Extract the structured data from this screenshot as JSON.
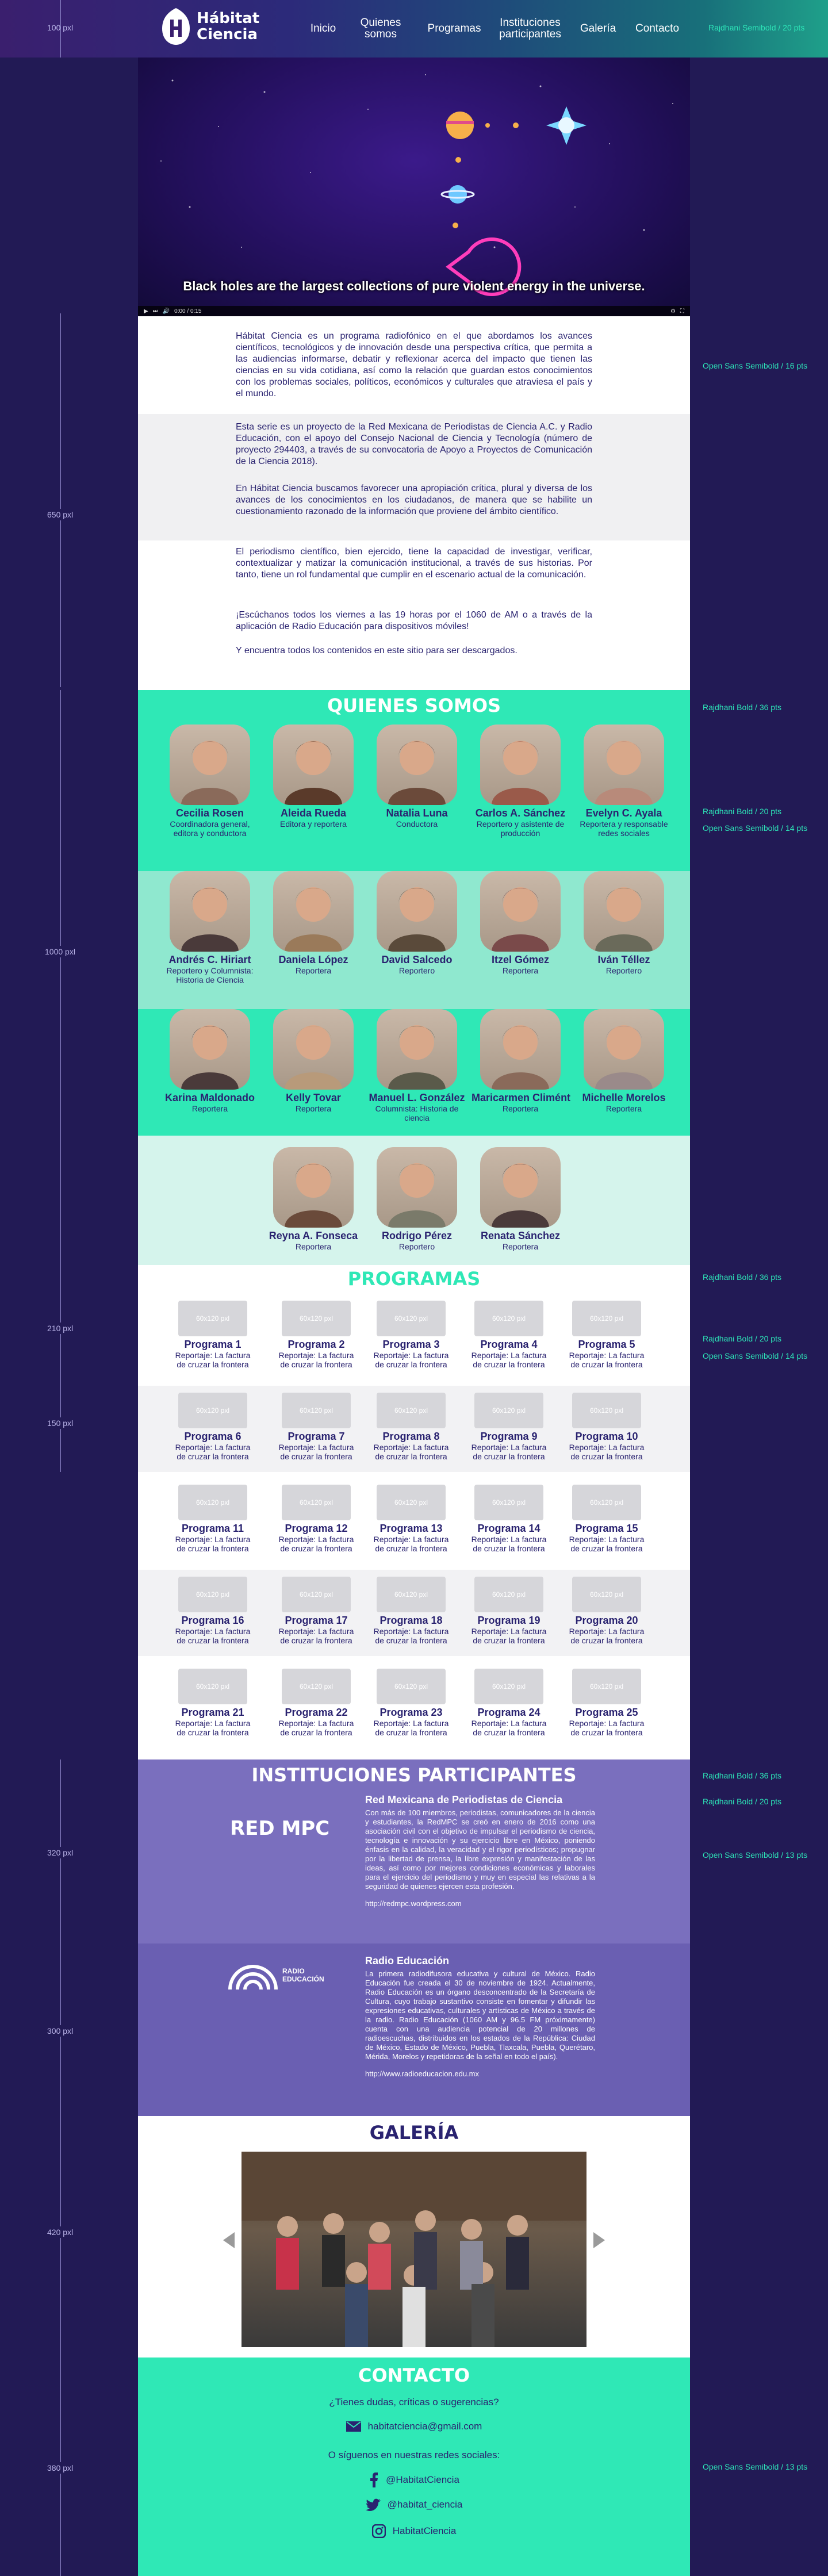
{
  "header": {
    "logo_line1": "Hábitat",
    "logo_line2": "Ciencia",
    "nav": [
      {
        "label": "Inicio"
      },
      {
        "label": "Quienes\nsomos"
      },
      {
        "label": "Programas"
      },
      {
        "label": "Instituciones\nparticipantes"
      },
      {
        "label": "Galería"
      },
      {
        "label": "Contacto"
      }
    ],
    "font_note": "Rajdhani Semibold / 20 pts"
  },
  "measures": [
    "100 pxl",
    "650 pxl",
    "1000 pxl",
    "210 pxl",
    "150 pxl",
    "320 pxl",
    "300 pxl",
    "420 pxl",
    "380 pxl"
  ],
  "side_notes": {
    "intro": "Open Sans Semibold / 16 pts",
    "somos_title": "Rajdhani Bold / 36 pts",
    "somos_name": "Rajdhani Bold / 20 pts",
    "somos_role": "Open Sans Semibold / 14 pts",
    "prog_title": "Rajdhani Bold / 36 pts",
    "prog_name": "Rajdhani Bold / 20 pts",
    "prog_desc": "Open Sans Semibold / 14 pts",
    "inst_title": "Rajdhani Bold / 36 pts",
    "inst_name": "Rajdhani Bold / 20 pts",
    "inst_desc": "Open Sans Semibold / 13 pts",
    "contact": "Open Sans Semibold / 13 pts"
  },
  "video": {
    "caption": "Black holes are the largest collections of pure violent energy in the universe.",
    "time": "0:00 / 0:15"
  },
  "intro": {
    "p1": "Hábitat Ciencia es un programa radiofónico en el que abordamos los avances científicos, tecnológicos y de innovación desde una perspectiva crítica, que permita a las audiencias informarse, debatir y reflexionar acerca del impacto que tienen las ciencias en su vida cotidiana, así como la relación que guardan estos conocimientos con los problemas sociales, políticos, económicos y culturales que atraviesa el país y el mundo.",
    "p2": "Esta serie es un proyecto de la Red Mexicana de Periodistas de Ciencia A.C. y Radio Educación, con el apoyo del Consejo Nacional de Ciencia y Tecnología (número de proyecto 294403, a través de su convocatoria de Apoyo a Proyectos de Comunicación de la Ciencia 2018).",
    "p3": "En Hábitat Ciencia buscamos favorecer una apropiación crítica, plural y diversa de los avances de los conocimientos en los ciudadanos, de manera que se habilite un cuestionamiento razonado de la información que proviene del ámbito científico.",
    "p4": "El periodismo científico, bien ejercido, tiene la capacidad de investigar, verificar, contextualizar y matizar la comunicación institucional, a través de sus historias. Por tanto, tiene un rol fundamental que cumplir en el escenario actual de la comunicación.",
    "p5": "¡Escúchanos todos los viernes a las 19 horas por el 1060 de AM o a través de la aplicación de Radio Educación para dispositivos móviles!",
    "p6": "Y encuentra todos los contenidos en este sitio para ser descargados."
  },
  "somos": {
    "title": "QUIENES SOMOS",
    "people": [
      {
        "name": "Cecilia Rosen",
        "role": "Coordinadora general, editora y conductora",
        "color": "#8a6a5a"
      },
      {
        "name": "Aleida Rueda",
        "role": "Editora y reportera",
        "color": "#5a3a2a"
      },
      {
        "name": "Natalia Luna",
        "role": "Conductora",
        "color": "#6b4a3a"
      },
      {
        "name": "Carlos A. Sánchez",
        "role": "Reportero y asistente de producción",
        "color": "#9a5a4a"
      },
      {
        "name": "Evelyn C. Ayala",
        "role": "Reportera y responsable redes sociales",
        "color": "#b88a7a"
      },
      {
        "name": "Andrés C. Hiriart",
        "role": "Reportero y Columnista: Historia de Ciencia",
        "color": "#4a3a3a"
      },
      {
        "name": "Daniela López",
        "role": "Reportera",
        "color": "#9a7a5a"
      },
      {
        "name": "David Salcedo",
        "role": "Reportero",
        "color": "#5a4a3a"
      },
      {
        "name": "Itzel Gómez",
        "role": "Reportera",
        "color": "#7a4a4a"
      },
      {
        "name": "Iván Téllez",
        "role": "Reportero",
        "color": "#6a6a5a"
      },
      {
        "name": "Karina Maldonado",
        "role": "Reportera",
        "color": "#4a3a3a"
      },
      {
        "name": "Kelly Tovar",
        "role": "Reportera",
        "color": "#b89a7a"
      },
      {
        "name": "Manuel L. González",
        "role": "Columnista: Historia de ciencia",
        "color": "#5a5a4a"
      },
      {
        "name": "Maricarmen Climént",
        "role": "Reportera",
        "color": "#8a6a5a"
      },
      {
        "name": "Michelle Morelos",
        "role": "Reportera",
        "color": "#9a8a8a"
      },
      {
        "name": "Reyna A. Fonseca",
        "role": "Reportera",
        "color": "#6a4a3a"
      },
      {
        "name": "Rodrigo Pérez",
        "role": "Reportero",
        "color": "#7a7a6a"
      },
      {
        "name": "Renata Sánchez",
        "role": "Reportera",
        "color": "#4a3a3a"
      }
    ]
  },
  "programas": {
    "title": "PROGRAMAS",
    "thumb_label": "60x120 pxl",
    "desc": "Reportaje: La factura de cruzar la frontera",
    "items": [
      "Programa 1",
      "Programa 2",
      "Programa 3",
      "Programa 4",
      "Programa 5",
      "Programa 6",
      "Programa 7",
      "Programa 8",
      "Programa 9",
      "Programa 10",
      "Programa 11",
      "Programa 12",
      "Programa 13",
      "Programa 14",
      "Programa 15",
      "Programa 16",
      "Programa 17",
      "Programa 18",
      "Programa 19",
      "Programa 20",
      "Programa 21",
      "Programa 22",
      "Programa 23",
      "Programa 24",
      "Programa 25"
    ]
  },
  "inst": {
    "title": "INSTITUCIONES PARTICIPANTES",
    "red": {
      "logo": "RED MPC",
      "name": "Red Mexicana de Periodistas de Ciencia",
      "desc": "Con más de 100 miembros, periodistas, comunicadores de la ciencia y estudiantes, la RedMPC se creó en enero de 2016 como una asociación civil con el objetivo de impulsar el periodismo de ciencia, tecnología e innovación y su ejercicio libre en México, poniendo énfasis en la calidad, la veracidad y el rigor periodísticos; propugnar por la libertad de prensa, la libre expresión y manifestación de las ideas, así como por mejores condiciones económicas y laborales para el ejercicio del periodismo y muy en especial las relativas a la seguridad de quienes ejercen esta profesión.",
      "url": "http://redmpc.wordpress.com"
    },
    "re": {
      "logo1": "RADIO",
      "logo2": "EDUCACIÓN",
      "name": "Radio Educación",
      "desc": "La primera radiodifusora educativa y cultural de México. Radio Educación fue creada el 30 de noviembre de 1924. Actualmente, Radio Educación es un órgano desconcentrado de la Secretaría de Cultura, cuyo trabajo sustantivo consiste en fomentar y difundir las expresiones educativas, culturales y artísticas de México a través de la radio. Radio Educación (1060 AM y 96.5 FM próximamente) cuenta con una audiencia potencial de 20 millones de radioescuchas, distribuidos en los estados de la República: Ciudad de México, Estado de México, Puebla, Tlaxcala, Puebla, Querétaro, Mérida, Morelos y repetidoras de la señal en todo el país).",
      "url": "http://www.radioeducacion.edu.mx"
    }
  },
  "galeria": {
    "title": "GALERÍA"
  },
  "contacto": {
    "title": "CONTACTO",
    "question": "¿Tienes dudas, críticas o sugerencias?",
    "email": "habitatciencia@gmail.com",
    "social_intro": "O síguenos en nuestras redes sociales:",
    "facebook": "@HabitatCiencia",
    "twitter": "@habitat_ciencia",
    "instagram": "HabitatCiencia"
  }
}
